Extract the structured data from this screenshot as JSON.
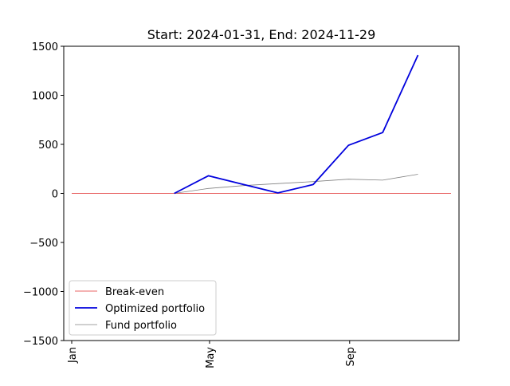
{
  "chart_data": {
    "type": "line",
    "title": "Start: 2024-01-31, End: 2024-11-29",
    "xlabel": "",
    "ylabel": "",
    "ylim": [
      -1500,
      1500
    ],
    "yticks": [
      1500,
      1000,
      500,
      0,
      -500,
      -1000,
      -1500
    ],
    "ytick_labels": [
      "1500",
      "1000",
      "500",
      "0",
      "−500",
      "−1000",
      "−1500"
    ],
    "xticks": [
      {
        "date": "2024-01-01",
        "label": "Jan"
      },
      {
        "date": "2024-05-01",
        "label": "May"
      },
      {
        "date": "2024-09-01",
        "label": "Sep"
      }
    ],
    "xlim": [
      "2023-12-25",
      "2024-12-06"
    ],
    "grid": false,
    "legend_position": "lower-left",
    "series": [
      {
        "name": "Break-even",
        "color": "#e03030",
        "style": "thin",
        "points": [
          [
            "2024-01-01",
            0
          ],
          [
            "2024-11-29",
            0
          ]
        ]
      },
      {
        "name": "Optimized portfolio",
        "color": "#0000dd",
        "style": "thick",
        "points": [
          [
            "2024-03-31",
            0
          ],
          [
            "2024-04-30",
            180
          ],
          [
            "2024-05-31",
            90
          ],
          [
            "2024-06-30",
            5
          ],
          [
            "2024-07-31",
            90
          ],
          [
            "2024-08-31",
            490
          ],
          [
            "2024-09-30",
            620
          ],
          [
            "2024-10-31",
            1410
          ]
        ]
      },
      {
        "name": "Fund portfolio",
        "color": "#808080",
        "style": "thin",
        "points": [
          [
            "2024-03-31",
            0
          ],
          [
            "2024-04-30",
            50
          ],
          [
            "2024-05-31",
            80
          ],
          [
            "2024-06-30",
            100
          ],
          [
            "2024-07-31",
            120
          ],
          [
            "2024-08-31",
            145
          ],
          [
            "2024-09-30",
            135
          ],
          [
            "2024-10-31",
            195
          ]
        ]
      }
    ]
  }
}
